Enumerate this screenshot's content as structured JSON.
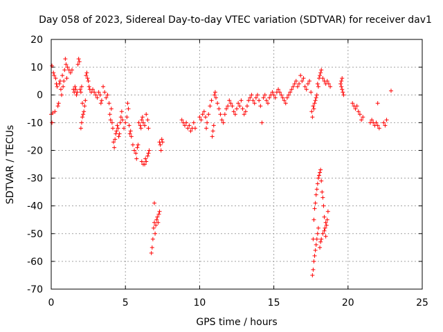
{
  "chart_data": {
    "type": "scatter",
    "title": "Day 058 of 2023, Sidereal Day-to-day VTEC variation (SDTVAR) for receiver dav1",
    "xlabel": "GPS time / hours",
    "ylabel": "SDTVAR / TECUs",
    "xlim": [
      0,
      25
    ],
    "ylim": [
      -70,
      20
    ],
    "xticks": [
      0,
      5,
      10,
      15,
      20,
      25
    ],
    "yticks": [
      20,
      10,
      0,
      -10,
      -20,
      -30,
      -40,
      -50,
      -60,
      -70
    ],
    "grid": true,
    "marker": "+",
    "series": [
      {
        "name": "SDTVAR",
        "color": "#ff0000",
        "points": [
          [
            0.0,
            -7
          ],
          [
            0.05,
            -10
          ],
          [
            0.05,
            10.5
          ],
          [
            0.1,
            -6.5
          ],
          [
            0.15,
            8
          ],
          [
            0.2,
            7
          ],
          [
            0.25,
            -6
          ],
          [
            0.3,
            6
          ],
          [
            0.35,
            4
          ],
          [
            0.4,
            3
          ],
          [
            0.45,
            -4
          ],
          [
            0.5,
            -3
          ],
          [
            0.55,
            4
          ],
          [
            0.6,
            5
          ],
          [
            0.65,
            2
          ],
          [
            0.7,
            0
          ],
          [
            0.75,
            7
          ],
          [
            0.8,
            3
          ],
          [
            0.85,
            5
          ],
          [
            0.9,
            9
          ],
          [
            0.95,
            13
          ],
          [
            1.0,
            11
          ],
          [
            1.05,
            6
          ],
          [
            1.1,
            10
          ],
          [
            1.2,
            9
          ],
          [
            1.3,
            8
          ],
          [
            1.4,
            9
          ],
          [
            1.5,
            2
          ],
          [
            1.55,
            1
          ],
          [
            1.6,
            3
          ],
          [
            1.65,
            2
          ],
          [
            1.7,
            0
          ],
          [
            1.75,
            1
          ],
          [
            1.8,
            11
          ],
          [
            1.85,
            13
          ],
          [
            1.9,
            12
          ],
          [
            1.95,
            2
          ],
          [
            2.0,
            1
          ],
          [
            2.05,
            3
          ],
          [
            2.1,
            -3
          ],
          [
            2.0,
            -12
          ],
          [
            2.05,
            -10
          ],
          [
            2.1,
            -8
          ],
          [
            2.15,
            -7
          ],
          [
            2.2,
            -6
          ],
          [
            2.25,
            -4
          ],
          [
            2.3,
            -2
          ],
          [
            2.35,
            7
          ],
          [
            2.4,
            8
          ],
          [
            2.45,
            6
          ],
          [
            2.5,
            5
          ],
          [
            2.55,
            3
          ],
          [
            2.6,
            2
          ],
          [
            2.7,
            1
          ],
          [
            2.8,
            2
          ],
          [
            2.9,
            1
          ],
          [
            3.0,
            0
          ],
          [
            3.1,
            -1
          ],
          [
            3.2,
            1
          ],
          [
            3.3,
            0
          ],
          [
            3.35,
            -3
          ],
          [
            3.4,
            -2
          ],
          [
            3.5,
            3
          ],
          [
            3.6,
            1
          ],
          [
            3.7,
            -1
          ],
          [
            3.8,
            0
          ],
          [
            3.9,
            -3
          ],
          [
            3.95,
            -7
          ],
          [
            4.0,
            -9
          ],
          [
            4.05,
            -5
          ],
          [
            4.1,
            -10
          ],
          [
            4.15,
            -12
          ],
          [
            4.2,
            -17
          ],
          [
            4.25,
            -19
          ],
          [
            4.3,
            -16
          ],
          [
            4.35,
            -14
          ],
          [
            4.4,
            -13
          ],
          [
            4.45,
            -11
          ],
          [
            4.5,
            -12
          ],
          [
            4.55,
            -15
          ],
          [
            4.6,
            -14
          ],
          [
            4.65,
            -10
          ],
          [
            4.7,
            -8
          ],
          [
            4.75,
            -6
          ],
          [
            4.8,
            -9
          ],
          [
            4.9,
            -12
          ],
          [
            5.0,
            -10
          ],
          [
            5.1,
            -8
          ],
          [
            5.15,
            -3
          ],
          [
            5.2,
            -5
          ],
          [
            5.25,
            -11
          ],
          [
            5.3,
            -14
          ],
          [
            5.35,
            -13
          ],
          [
            5.4,
            -15
          ],
          [
            5.5,
            -18
          ],
          [
            5.6,
            -20
          ],
          [
            5.7,
            -21
          ],
          [
            5.75,
            -23
          ],
          [
            5.8,
            -19
          ],
          [
            5.85,
            -18
          ],
          [
            5.9,
            -10
          ],
          [
            6.0,
            -11
          ],
          [
            6.05,
            -12
          ],
          [
            6.1,
            -9
          ],
          [
            6.15,
            -8
          ],
          [
            6.2,
            -10
          ],
          [
            6.3,
            -11
          ],
          [
            6.4,
            -7
          ],
          [
            6.5,
            -9
          ],
          [
            6.55,
            -12
          ],
          [
            6.1,
            -24
          ],
          [
            6.2,
            -25
          ],
          [
            6.3,
            -25
          ],
          [
            6.35,
            -23
          ],
          [
            6.4,
            -24
          ],
          [
            6.5,
            -22
          ],
          [
            6.55,
            -21
          ],
          [
            6.6,
            -20
          ],
          [
            6.75,
            -57
          ],
          [
            6.8,
            -55
          ],
          [
            6.85,
            -52
          ],
          [
            6.9,
            -48
          ],
          [
            6.95,
            -46
          ],
          [
            6.95,
            -39
          ],
          [
            7.0,
            -50
          ],
          [
            7.05,
            -47
          ],
          [
            7.1,
            -45
          ],
          [
            7.15,
            -44
          ],
          [
            7.2,
            -46
          ],
          [
            7.25,
            -43
          ],
          [
            7.3,
            -42
          ],
          [
            7.3,
            -17
          ],
          [
            7.35,
            -18
          ],
          [
            7.4,
            -20
          ],
          [
            7.45,
            -16
          ],
          [
            7.5,
            -17
          ],
          [
            8.8,
            -9
          ],
          [
            8.9,
            -10
          ],
          [
            9.0,
            -11
          ],
          [
            9.1,
            -10
          ],
          [
            9.2,
            -12
          ],
          [
            9.3,
            -11
          ],
          [
            9.4,
            -13
          ],
          [
            9.5,
            -12
          ],
          [
            9.6,
            -10
          ],
          [
            9.7,
            -12
          ],
          [
            10.0,
            -8
          ],
          [
            10.1,
            -9
          ],
          [
            10.2,
            -7
          ],
          [
            10.3,
            -6
          ],
          [
            10.4,
            -8
          ],
          [
            10.45,
            -12
          ],
          [
            10.5,
            -10
          ],
          [
            10.6,
            -7
          ],
          [
            10.7,
            -4
          ],
          [
            10.8,
            -2
          ],
          [
            10.85,
            -15
          ],
          [
            10.9,
            -13
          ],
          [
            10.95,
            -11
          ],
          [
            11.0,
            0
          ],
          [
            11.05,
            1
          ],
          [
            11.1,
            -1
          ],
          [
            11.2,
            -3
          ],
          [
            11.3,
            -5
          ],
          [
            11.4,
            -7
          ],
          [
            11.5,
            -9
          ],
          [
            11.6,
            -10
          ],
          [
            11.7,
            -7
          ],
          [
            11.8,
            -5
          ],
          [
            11.9,
            -4
          ],
          [
            12.0,
            -2
          ],
          [
            12.1,
            -3
          ],
          [
            12.2,
            -4
          ],
          [
            12.3,
            -6
          ],
          [
            12.4,
            -7
          ],
          [
            12.5,
            -5
          ],
          [
            12.6,
            -3
          ],
          [
            12.7,
            -4
          ],
          [
            12.8,
            -2
          ],
          [
            12.9,
            -5
          ],
          [
            13.0,
            -7
          ],
          [
            13.1,
            -6
          ],
          [
            13.2,
            -4
          ],
          [
            13.3,
            -2
          ],
          [
            13.4,
            -1
          ],
          [
            13.5,
            0
          ],
          [
            13.6,
            -2
          ],
          [
            13.7,
            -3
          ],
          [
            13.8,
            -1
          ],
          [
            13.9,
            0
          ],
          [
            14.0,
            -2
          ],
          [
            14.1,
            -4
          ],
          [
            14.2,
            -10
          ],
          [
            14.3,
            -1
          ],
          [
            14.4,
            0
          ],
          [
            14.5,
            -2
          ],
          [
            14.6,
            -3
          ],
          [
            14.7,
            -1
          ],
          [
            14.8,
            0
          ],
          [
            14.9,
            1
          ],
          [
            15.0,
            0
          ],
          [
            15.1,
            -1
          ],
          [
            15.2,
            1
          ],
          [
            15.3,
            2
          ],
          [
            15.4,
            1
          ],
          [
            15.5,
            0
          ],
          [
            15.6,
            -1
          ],
          [
            15.7,
            -2
          ],
          [
            15.8,
            -3
          ],
          [
            15.9,
            -1
          ],
          [
            16.0,
            0
          ],
          [
            16.1,
            1
          ],
          [
            16.2,
            2
          ],
          [
            16.3,
            3
          ],
          [
            16.4,
            4
          ],
          [
            16.5,
            5
          ],
          [
            16.6,
            3
          ],
          [
            16.7,
            4
          ],
          [
            16.8,
            7
          ],
          [
            16.9,
            5
          ],
          [
            17.0,
            6
          ],
          [
            17.1,
            3
          ],
          [
            17.2,
            2
          ],
          [
            17.3,
            4
          ],
          [
            17.4,
            5
          ],
          [
            17.5,
            1
          ],
          [
            17.55,
            -6
          ],
          [
            17.6,
            -8
          ],
          [
            17.65,
            -4
          ],
          [
            17.7,
            -5
          ],
          [
            17.75,
            -3
          ],
          [
            17.8,
            -2
          ],
          [
            17.85,
            -1
          ],
          [
            17.9,
            0
          ],
          [
            17.95,
            4
          ],
          [
            18.0,
            3
          ],
          [
            18.05,
            6
          ],
          [
            18.1,
            7
          ],
          [
            18.15,
            8
          ],
          [
            18.2,
            9
          ],
          [
            18.3,
            6
          ],
          [
            18.4,
            5
          ],
          [
            18.5,
            4
          ],
          [
            18.6,
            5
          ],
          [
            18.7,
            4
          ],
          [
            18.8,
            3
          ],
          [
            17.6,
            -65
          ],
          [
            17.65,
            -63
          ],
          [
            17.7,
            -60
          ],
          [
            17.75,
            -58
          ],
          [
            17.8,
            -56
          ],
          [
            17.85,
            -54
          ],
          [
            17.9,
            -52
          ],
          [
            17.95,
            -50
          ],
          [
            18.0,
            -48
          ],
          [
            17.65,
            -52
          ],
          [
            17.7,
            -45
          ],
          [
            17.75,
            -41
          ],
          [
            17.8,
            -39
          ],
          [
            17.85,
            -36
          ],
          [
            17.9,
            -34
          ],
          [
            17.95,
            -32
          ],
          [
            18.0,
            -30
          ],
          [
            18.05,
            -29
          ],
          [
            18.1,
            -28
          ],
          [
            18.15,
            -27
          ],
          [
            18.2,
            -31
          ],
          [
            18.25,
            -35
          ],
          [
            18.3,
            -37
          ],
          [
            18.35,
            -40
          ],
          [
            18.4,
            -44
          ],
          [
            18.45,
            -48
          ],
          [
            18.5,
            -51
          ],
          [
            18.55,
            -47
          ],
          [
            18.6,
            -45
          ],
          [
            18.65,
            -42
          ],
          [
            18.1,
            -55
          ],
          [
            18.15,
            -53
          ],
          [
            18.2,
            -52
          ],
          [
            18.3,
            -50
          ],
          [
            18.4,
            -49
          ],
          [
            18.5,
            -46
          ],
          [
            19.5,
            4
          ],
          [
            19.55,
            3
          ],
          [
            19.6,
            2
          ],
          [
            19.65,
            1
          ],
          [
            19.7,
            0
          ],
          [
            19.55,
            5
          ],
          [
            19.6,
            6
          ],
          [
            20.3,
            -3
          ],
          [
            20.4,
            -4
          ],
          [
            20.5,
            -5
          ],
          [
            20.6,
            -4
          ],
          [
            20.7,
            -6
          ],
          [
            20.8,
            -7
          ],
          [
            20.9,
            -9
          ],
          [
            21.0,
            -8
          ],
          [
            21.5,
            -10
          ],
          [
            21.6,
            -9
          ],
          [
            21.7,
            -10
          ],
          [
            21.8,
            -11
          ],
          [
            21.9,
            -10
          ],
          [
            22.0,
            -11
          ],
          [
            22.1,
            -12
          ],
          [
            22.0,
            -3
          ],
          [
            22.4,
            -10
          ],
          [
            22.5,
            -11
          ],
          [
            22.6,
            -9
          ],
          [
            22.9,
            1.5
          ]
        ]
      }
    ]
  }
}
